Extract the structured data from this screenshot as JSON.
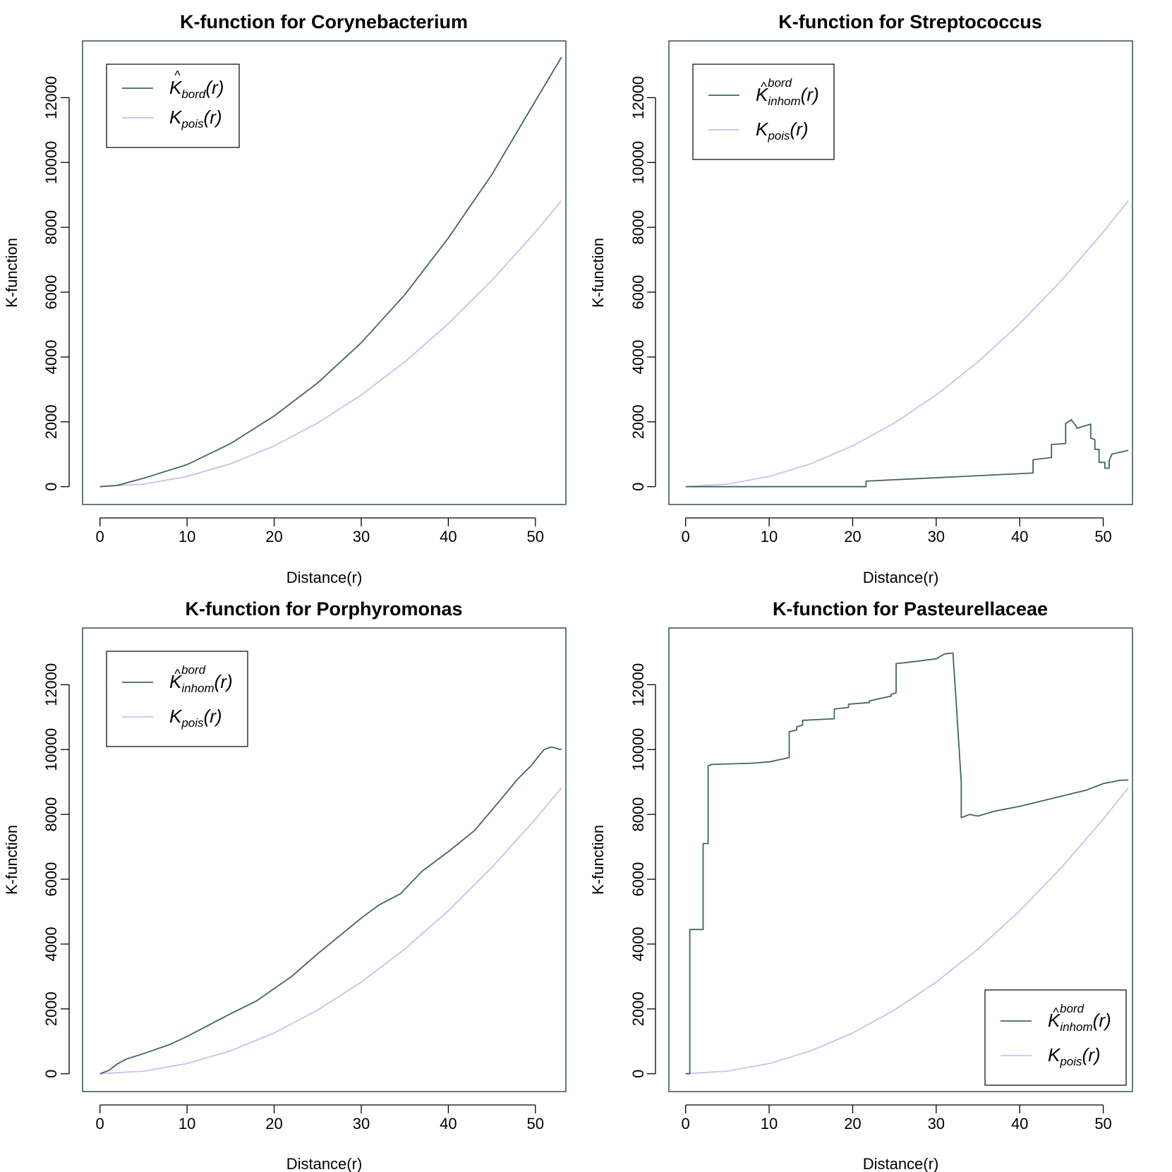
{
  "colors": {
    "estimate": "#3f6660",
    "poisson": "#c8c0ee",
    "box": "#2f5250",
    "text": "#000000"
  },
  "chart_data": [
    {
      "type": "line",
      "title": "K-function for Corynebacterium",
      "xlabel": "Distance(r)",
      "ylabel": "K-function",
      "xlim": [
        -2,
        53.5
      ],
      "ylim": [
        -550,
        13750
      ],
      "xticks": [
        0,
        10,
        20,
        30,
        40,
        50
      ],
      "yticks": [
        0,
        2000,
        4000,
        6000,
        8000,
        10000,
        12000
      ],
      "xtick_labels": [
        "0",
        "10",
        "20",
        "30",
        "40",
        "50"
      ],
      "ytick_labels": [
        "0",
        "2000",
        "4000",
        "6000",
        "8000",
        "10000",
        "12000"
      ],
      "legend": {
        "position": "top-left",
        "entries": [
          {
            "name": "K_bord(r)",
            "base": "K",
            "hat": "^",
            "sub": "bord",
            "sup": "",
            "arg": "(r)",
            "color": "#3f6660"
          },
          {
            "name": "K_pois(r)",
            "base": "K",
            "hat": "",
            "sub": "pois",
            "sup": "",
            "arg": "(r)",
            "color": "#c8c0ee"
          }
        ]
      },
      "series": [
        {
          "name": "K_bord(r)",
          "color": "#3f6660",
          "x": [
            0,
            2,
            5,
            10,
            15,
            20,
            25,
            30,
            35,
            40,
            45,
            50,
            53
          ],
          "y": [
            0,
            40,
            260,
            680,
            1330,
            2180,
            3200,
            4440,
            5920,
            7670,
            9630,
            11900,
            13250
          ]
        },
        {
          "name": "K_pois(r)",
          "color": "#c8c0ee",
          "x": [
            0,
            5,
            10,
            15,
            20,
            25,
            30,
            35,
            40,
            45,
            50,
            53
          ],
          "y": [
            0,
            79,
            314,
            707,
            1257,
            1963,
            2827,
            3848,
            5027,
            6362,
            7854,
            8825
          ]
        }
      ]
    },
    {
      "type": "line",
      "title": "K-function for Streptococcus",
      "xlabel": "Distance(r)",
      "ylabel": "K-function",
      "xlim": [
        -2,
        53.5
      ],
      "ylim": [
        -550,
        13750
      ],
      "xticks": [
        0,
        10,
        20,
        30,
        40,
        50
      ],
      "yticks": [
        0,
        2000,
        4000,
        6000,
        8000,
        10000,
        12000
      ],
      "xtick_labels": [
        "0",
        "10",
        "20",
        "30",
        "40",
        "50"
      ],
      "ytick_labels": [
        "0",
        "2000",
        "4000",
        "6000",
        "8000",
        "10000",
        "12000"
      ],
      "legend": {
        "position": "top-left",
        "entries": [
          {
            "name": "K_inhom^bord(r)",
            "base": "K",
            "hat": "^",
            "sub": "inhom",
            "sup": "bord",
            "arg": "(r)",
            "color": "#3f6660"
          },
          {
            "name": "K_pois(r)",
            "base": "K",
            "hat": "",
            "sub": "pois",
            "sup": "",
            "arg": "(r)",
            "color": "#c8c0ee"
          }
        ]
      },
      "series": [
        {
          "name": "K_inhom^bord(r)",
          "color": "#3f6660",
          "x": [
            0,
            21.6,
            21.6,
            41.6,
            41.6,
            43.8,
            43.8,
            45.5,
            45.5,
            46.2,
            46.2,
            46.8,
            46.8,
            48.5,
            48.5,
            49.0,
            49.0,
            49.5,
            49.5,
            50.2,
            50.2,
            50.7,
            50.7,
            51.0,
            51.0,
            53.0
          ],
          "y": [
            0,
            0,
            170,
            420,
            830,
            900,
            1300,
            1330,
            1950,
            2070,
            2050,
            1850,
            1800,
            1930,
            1500,
            1450,
            1150,
            1150,
            750,
            750,
            570,
            570,
            800,
            980,
            1000,
            1120
          ]
        },
        {
          "name": "K_pois(r)",
          "color": "#c8c0ee",
          "x": [
            0,
            5,
            10,
            15,
            20,
            25,
            30,
            35,
            40,
            45,
            50,
            53
          ],
          "y": [
            0,
            79,
            314,
            707,
            1257,
            1963,
            2827,
            3848,
            5027,
            6362,
            7854,
            8825
          ]
        }
      ]
    },
    {
      "type": "line",
      "title": "K-function for Porphyromonas",
      "xlabel": "Distance(r)",
      "ylabel": "K-function",
      "xlim": [
        -2,
        53.5
      ],
      "ylim": [
        -550,
        13750
      ],
      "xticks": [
        0,
        10,
        20,
        30,
        40,
        50
      ],
      "yticks": [
        0,
        2000,
        4000,
        6000,
        8000,
        10000,
        12000
      ],
      "xtick_labels": [
        "0",
        "10",
        "20",
        "30",
        "40",
        "50"
      ],
      "ytick_labels": [
        "0",
        "2000",
        "4000",
        "6000",
        "8000",
        "10000",
        "12000"
      ],
      "legend": {
        "position": "top-left",
        "entries": [
          {
            "name": "K_inhom^bord(r)",
            "base": "K",
            "hat": "^",
            "sub": "inhom",
            "sup": "bord",
            "arg": "(r)",
            "color": "#3f6660"
          },
          {
            "name": "K_pois(r)",
            "base": "K",
            "hat": "",
            "sub": "pois",
            "sup": "",
            "arg": "(r)",
            "color": "#c8c0ee"
          }
        ]
      },
      "series": [
        {
          "name": "K_inhom^bord(r)",
          "color": "#3f6660",
          "x": [
            0,
            1,
            2,
            3,
            5,
            8,
            10,
            15,
            18,
            22,
            25,
            30,
            32,
            34.5,
            37,
            40,
            43,
            46,
            48,
            49.5,
            51,
            51.8,
            52.3,
            52.8,
            53
          ],
          "y": [
            0,
            100,
            300,
            450,
            620,
            900,
            1150,
            1850,
            2250,
            3000,
            3700,
            4800,
            5200,
            5550,
            6250,
            6850,
            7500,
            8450,
            9100,
            9500,
            10000,
            10080,
            10050,
            10000,
            10020
          ]
        },
        {
          "name": "K_pois(r)",
          "color": "#c8c0ee",
          "x": [
            0,
            5,
            10,
            15,
            20,
            25,
            30,
            35,
            40,
            45,
            50,
            53
          ],
          "y": [
            0,
            79,
            314,
            707,
            1257,
            1963,
            2827,
            3848,
            5027,
            6362,
            7854,
            8825
          ]
        }
      ]
    },
    {
      "type": "line",
      "title": "K-function for Pasteurellaceae",
      "xlabel": "Distance(r)",
      "ylabel": "K-function",
      "xlim": [
        -2,
        53.5
      ],
      "ylim": [
        -550,
        13750
      ],
      "xticks": [
        0,
        10,
        20,
        30,
        40,
        50
      ],
      "yticks": [
        0,
        2000,
        4000,
        6000,
        8000,
        10000,
        12000
      ],
      "xtick_labels": [
        "0",
        "10",
        "20",
        "30",
        "40",
        "50"
      ],
      "ytick_labels": [
        "0",
        "2000",
        "4000",
        "6000",
        "8000",
        "10000",
        "12000"
      ],
      "legend": {
        "position": "bottom-right",
        "entries": [
          {
            "name": "K_inhom^bord(r)",
            "base": "K",
            "hat": "^",
            "sub": "inhom",
            "sup": "bord",
            "arg": "(r)",
            "color": "#3f6660"
          },
          {
            "name": "K_pois(r)",
            "base": "K",
            "hat": "",
            "sub": "pois",
            "sup": "",
            "arg": "(r)",
            "color": "#c8c0ee"
          }
        ]
      },
      "series": [
        {
          "name": "K_inhom^bord(r)",
          "color": "#3f6660",
          "x": [
            0,
            0.5,
            0.5,
            2.1,
            2.1,
            2.7,
            2.7,
            3.0,
            3.0,
            8.0,
            10.0,
            12.4,
            12.4,
            13.3,
            13.3,
            14.0,
            14.0,
            17.8,
            17.8,
            19.5,
            19.5,
            22.0,
            22.0,
            24.6,
            24.6,
            25.2,
            25.2,
            27.0,
            30.0,
            31.0,
            32.0,
            32.0,
            32.5,
            32.5,
            33.0,
            33.0,
            34.0,
            35.0,
            37.0,
            40.0,
            44.0,
            48.0,
            50.0,
            51.0,
            52.0,
            53.0
          ],
          "y": [
            0,
            0,
            4450,
            4450,
            7100,
            7100,
            9500,
            9520,
            9540,
            9580,
            9620,
            9750,
            10550,
            10600,
            10700,
            10750,
            10900,
            10950,
            11250,
            11300,
            11400,
            11450,
            11500,
            11650,
            11700,
            11750,
            12650,
            12700,
            12800,
            12950,
            12980,
            12980,
            11050,
            11000,
            9000,
            7900,
            8000,
            7950,
            8100,
            8250,
            8500,
            8750,
            8950,
            9000,
            9050,
            9060
          ]
        },
        {
          "name": "K_pois(r)",
          "color": "#c8c0ee",
          "x": [
            0,
            5,
            10,
            15,
            20,
            25,
            30,
            35,
            40,
            45,
            50,
            53
          ],
          "y": [
            0,
            79,
            314,
            707,
            1257,
            1963,
            2827,
            3848,
            5027,
            6362,
            7854,
            8825
          ]
        }
      ]
    }
  ]
}
